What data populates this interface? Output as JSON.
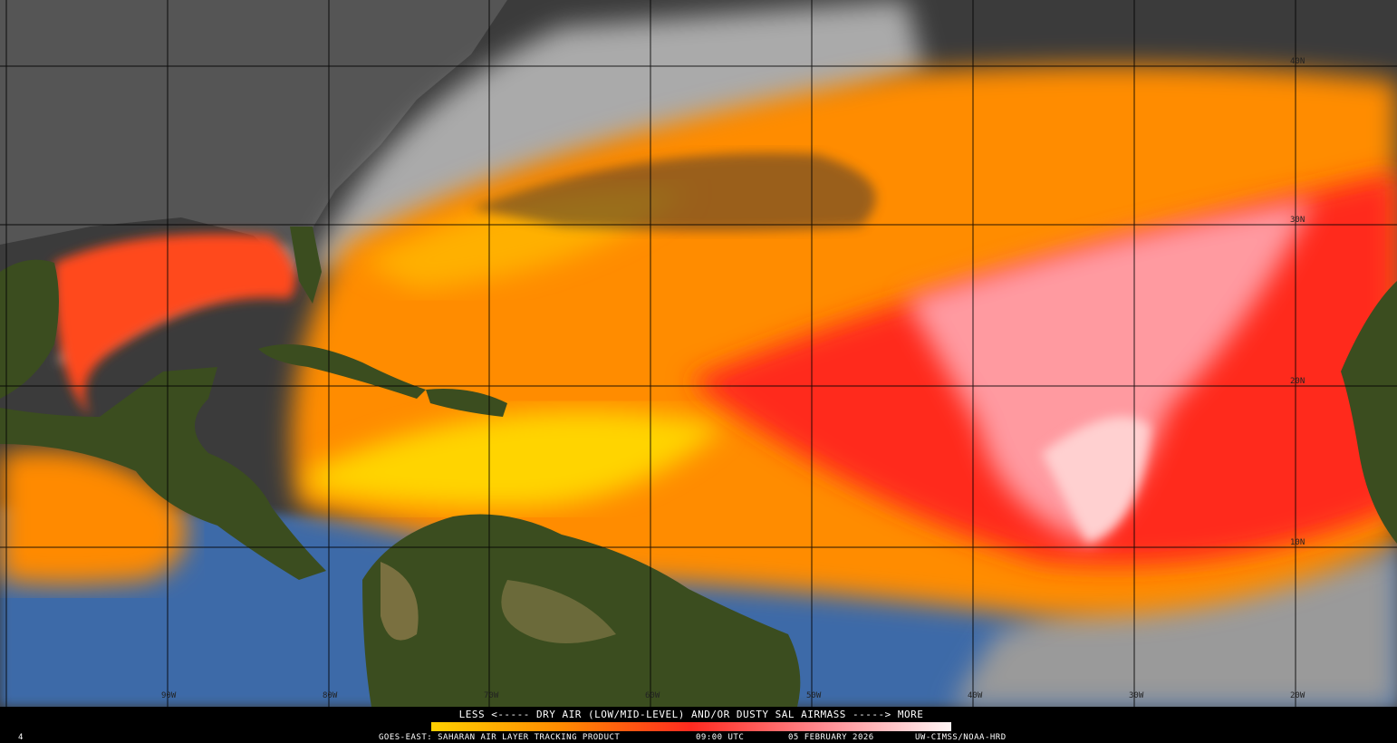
{
  "legend": {
    "caption": "LESS <----- DRY AIR (LOW/MID-LEVEL) AND/OR DUSTY SAL AIRMASS -----> MORE"
  },
  "footer": {
    "frame": "4",
    "product": "GOES-EAST: SAHARAN AIR LAYER TRACKING PRODUCT",
    "time": "09:00 UTC",
    "date": "05 FEBRUARY 2026",
    "credit": "UW-CIMSS/NOAA-HRD"
  },
  "grid": {
    "longitude_labels": [
      "90W",
      "80W",
      "70W",
      "60W",
      "50W",
      "40W",
      "30W",
      "20W"
    ],
    "latitude_labels": [
      "40N",
      "30N",
      "20N",
      "10N"
    ]
  }
}
